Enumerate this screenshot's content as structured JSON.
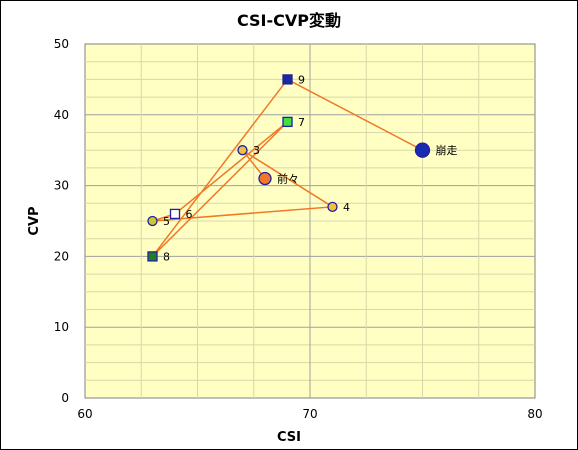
{
  "chart_data": {
    "type": "scatter",
    "title": "CSI-CVP変動",
    "xlabel": "CSI",
    "ylabel": "CVP",
    "xlim": [
      60,
      80
    ],
    "ylim": [
      0,
      50
    ],
    "x_ticks": [
      60,
      70,
      80
    ],
    "y_ticks": [
      0,
      10,
      20,
      30,
      40,
      50
    ],
    "x_tick_labels": [
      "60",
      "70",
      "80"
    ],
    "y_tick_labels": [
      "0",
      "10",
      "20",
      "30",
      "40",
      "50"
    ],
    "grid": true,
    "colors": {
      "plot_bg": "#ffffc4",
      "line": "#f07828",
      "edge": "#2020a0"
    },
    "points": [
      {
        "label": "前々",
        "x": 68,
        "y": 31,
        "marker": "circle",
        "fill": "#f07828",
        "r": 6
      },
      {
        "label": "3",
        "x": 67,
        "y": 35,
        "marker": "circle",
        "fill": "#f0c040",
        "r": 4.5
      },
      {
        "label": "4",
        "x": 71,
        "y": 27,
        "marker": "circle",
        "fill": "#f0c040",
        "r": 4.5
      },
      {
        "label": "5",
        "x": 63,
        "y": 25,
        "marker": "circle",
        "fill": "#c8c830",
        "r": 4.5
      },
      {
        "label": "6",
        "x": 64,
        "y": 26,
        "marker": "square",
        "fill": "#ffffff",
        "r": 4.5
      },
      {
        "label": "7",
        "x": 69,
        "y": 39,
        "marker": "square",
        "fill": "#40e040",
        "r": 4.5
      },
      {
        "label": "8",
        "x": 63,
        "y": 20,
        "marker": "square",
        "fill": "#208020",
        "r": 4.5
      },
      {
        "label": "9",
        "x": 69,
        "y": 45,
        "marker": "square",
        "fill": "#1a2a9a",
        "r": 4.5
      },
      {
        "label": "崩走",
        "x": 75,
        "y": 35,
        "marker": "circle",
        "fill": "#1a2ab0",
        "r": 7
      }
    ]
  }
}
